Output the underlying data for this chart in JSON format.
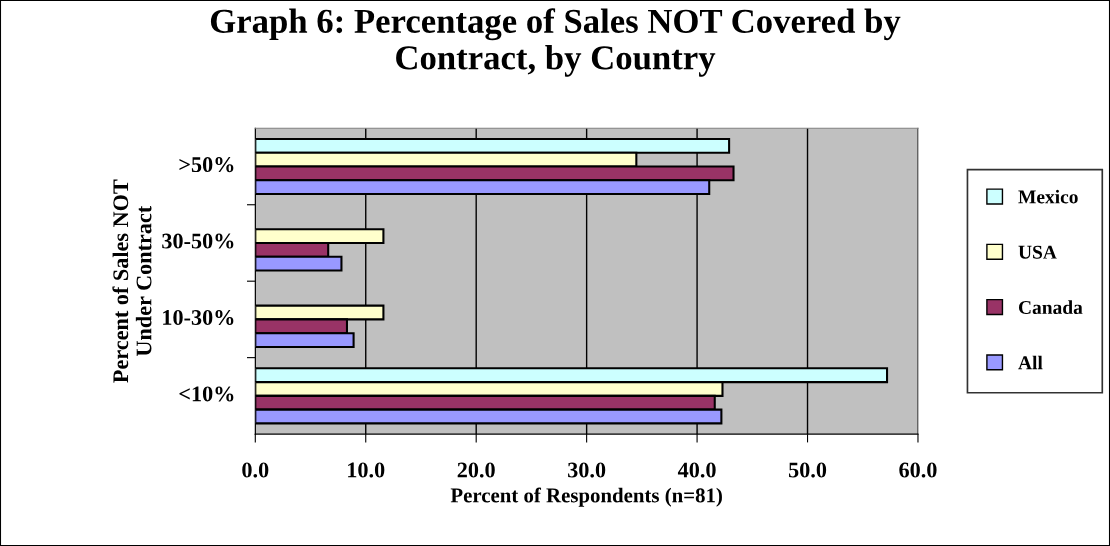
{
  "chart_data": {
    "type": "bar",
    "orientation": "horizontal",
    "title": "Graph 6: Percentage of Sales NOT Covered by\nContract, by Country",
    "xlabel": "Percent of Respondents (n=81)",
    "ylabel": "Percent of Sales NOT\nUnder Contract",
    "categories": [
      ">50%",
      "30-50%",
      "10-30%",
      "<10%"
    ],
    "series": [
      {
        "name": "Mexico",
        "color": "#ccffff",
        "values": [
          42.9,
          null,
          null,
          57.2
        ]
      },
      {
        "name": "USA",
        "color": "#ffffcc",
        "values": [
          34.5,
          11.6,
          11.6,
          42.3
        ]
      },
      {
        "name": "Canada",
        "color": "#993366",
        "values": [
          43.3,
          6.6,
          8.3,
          41.6
        ]
      },
      {
        "name": "All",
        "color": "#9999ff",
        "values": [
          41.1,
          7.8,
          8.9,
          42.2
        ]
      }
    ],
    "xlim": [
      0,
      60
    ],
    "xticks": [
      {
        "value": 0,
        "label": "0.0"
      },
      {
        "value": 10,
        "label": "10.0"
      },
      {
        "value": 20,
        "label": "20.0"
      },
      {
        "value": 30,
        "label": "30.0"
      },
      {
        "value": 40,
        "label": "40.0"
      },
      {
        "value": 50,
        "label": "50.0"
      },
      {
        "value": 60,
        "label": "60.0"
      }
    ],
    "grid": "x",
    "legend": "right"
  }
}
